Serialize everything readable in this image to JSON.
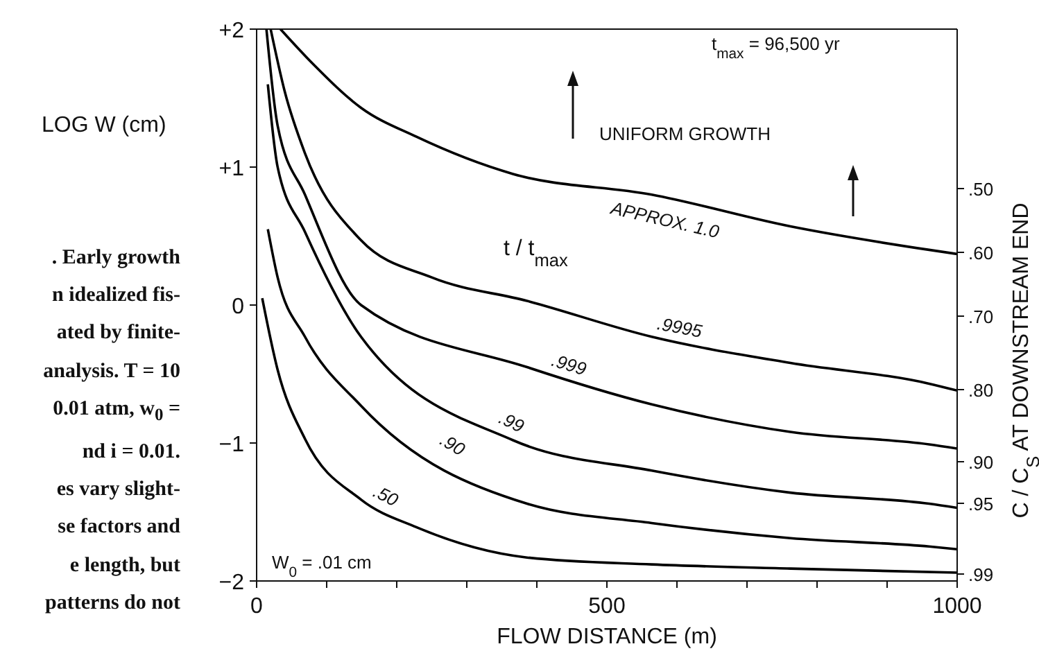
{
  "chart_data": {
    "type": "line",
    "xlabel": "FLOW DISTANCE (m)",
    "ylabel": "LOG W (cm)",
    "y2label": "C / C$_{S}$ AT DOWNSTREAM END",
    "xlim": [
      0,
      1000
    ],
    "xticks": [
      0,
      {
        "value": 100,
        "label": null
      },
      {
        "value": 200,
        "label": null
      },
      {
        "value": 300,
        "label": null
      },
      {
        "value": 400,
        "label": null
      },
      500,
      {
        "value": 600,
        "label": null
      },
      {
        "value": 700,
        "label": null
      },
      {
        "value": 800,
        "label": null
      },
      {
        "value": 900,
        "label": null
      },
      1000
    ],
    "ylim": [
      -2,
      2
    ],
    "yticks": [
      {
        "value": -2,
        "label": "−2"
      },
      {
        "value": -1,
        "label": "−1"
      },
      0,
      {
        "value": 1,
        "label": "+1"
      },
      {
        "value": 2,
        "label": "+2"
      }
    ],
    "grid": false,
    "legend": false,
    "marker": "none",
    "line_style": "solid",
    "series": [
      {
        "name": "APPROX. 1.0",
        "color": "#000000",
        "x": [
          34,
          80,
          149,
          228,
          366,
          564,
          762,
          960,
          1000
        ],
        "values": [
          2,
          1.75,
          1.43,
          1.22,
          0.95,
          0.8,
          0.57,
          0.4,
          0.37
        ]
      },
      {
        "name": ".9995",
        "color": "#000000",
        "x": [
          20,
          40,
          69,
          149,
          250,
          386,
          564,
          762,
          960,
          1000
        ],
        "values": [
          2,
          1.55,
          1.1,
          0.47,
          0.2,
          0.03,
          -0.23,
          -0.42,
          -0.57,
          -0.62
        ]
      },
      {
        "name": ".999",
        "color": "#000000",
        "x": [
          14,
          30,
          69,
          149,
          386,
          564,
          762,
          960,
          1000
        ],
        "values": [
          2,
          1.3,
          0.8,
          0.0,
          -0.45,
          -0.72,
          -0.92,
          -1.01,
          -1.04
        ]
      },
      {
        "name": ".99",
        "color": "#000000",
        "x": [
          16,
          30,
          69,
          149,
          366,
          564,
          762,
          960,
          1000
        ],
        "values": [
          1.6,
          1.0,
          0.53,
          -0.23,
          -0.98,
          -1.2,
          -1.36,
          -1.44,
          -1.47
        ]
      },
      {
        "name": ".90",
        "color": "#000000",
        "x": [
          16,
          30,
          69,
          149,
          386,
          564,
          762,
          960,
          1000
        ],
        "values": [
          0.55,
          0.2,
          -0.23,
          -0.73,
          -1.44,
          -1.58,
          -1.69,
          -1.75,
          -1.77
        ]
      },
      {
        "name": ".50",
        "color": "#000000",
        "x": [
          8,
          30,
          69,
          149,
          228,
          386,
          564,
          762,
          1000
        ],
        "values": [
          0.05,
          -0.47,
          -0.97,
          -1.41,
          -1.61,
          -1.83,
          -1.88,
          -1.91,
          -1.94
        ]
      }
    ],
    "annotations": [
      "t$_{max}$ = 96,500 yr",
      "UNIFORM GROWTH",
      "t / t$_{max}$",
      "W$_{0}$ = .01 cm",
      ". Early growth",
      "n idealized fis-",
      "ated by finite-",
      "analysis. T = 10",
      "0.01 atm, w$_{0}$ =",
      "nd i = 0.01.",
      "es vary slight-",
      "se factors and",
      "e length, but",
      "patterns do not",
      ".50",
      ".60",
      ".70",
      ".80",
      ".90",
      ".95",
      ".99"
    ]
  }
}
